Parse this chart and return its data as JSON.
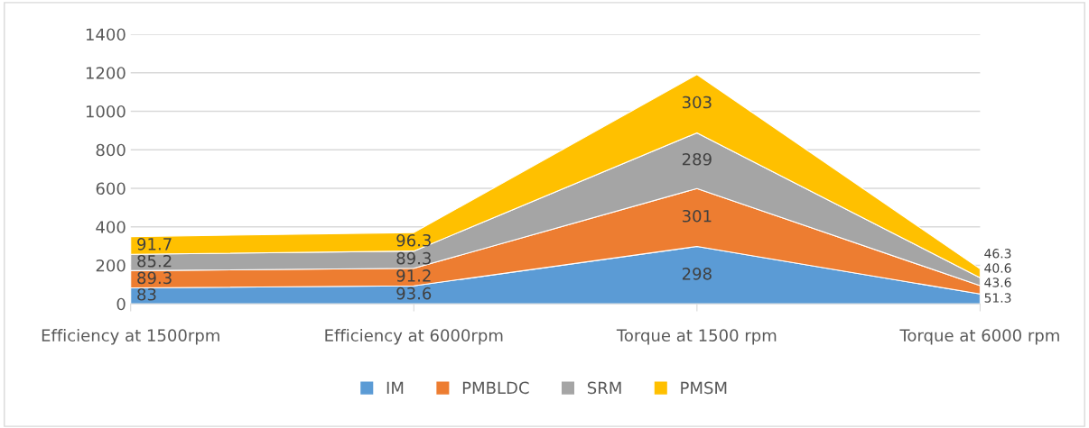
{
  "chart_data": {
    "type": "area",
    "stacked": true,
    "categories": [
      "Efficiency at 1500rpm",
      "Efficiency at 6000rpm",
      "Torque at 1500 rpm",
      "Torque at 6000 rpm"
    ],
    "series": [
      {
        "name": "IM",
        "color": "#5b9bd5",
        "values": [
          83,
          93.6,
          298,
          51.3
        ]
      },
      {
        "name": "PMBLDC",
        "color": "#ed7d31",
        "values": [
          89.3,
          91.2,
          301,
          43.6
        ]
      },
      {
        "name": "SRM",
        "color": "#a5a5a5",
        "values": [
          85.2,
          89.3,
          289,
          40.6
        ]
      },
      {
        "name": "PMSM",
        "color": "#ffc000",
        "values": [
          91.7,
          96.3,
          303,
          46.3
        ]
      }
    ],
    "ylim": [
      0,
      1400
    ],
    "yticks": [
      0,
      200,
      400,
      600,
      800,
      1000,
      1200,
      1400
    ],
    "grid": "y",
    "legend": "bottom",
    "data_labels": true
  }
}
